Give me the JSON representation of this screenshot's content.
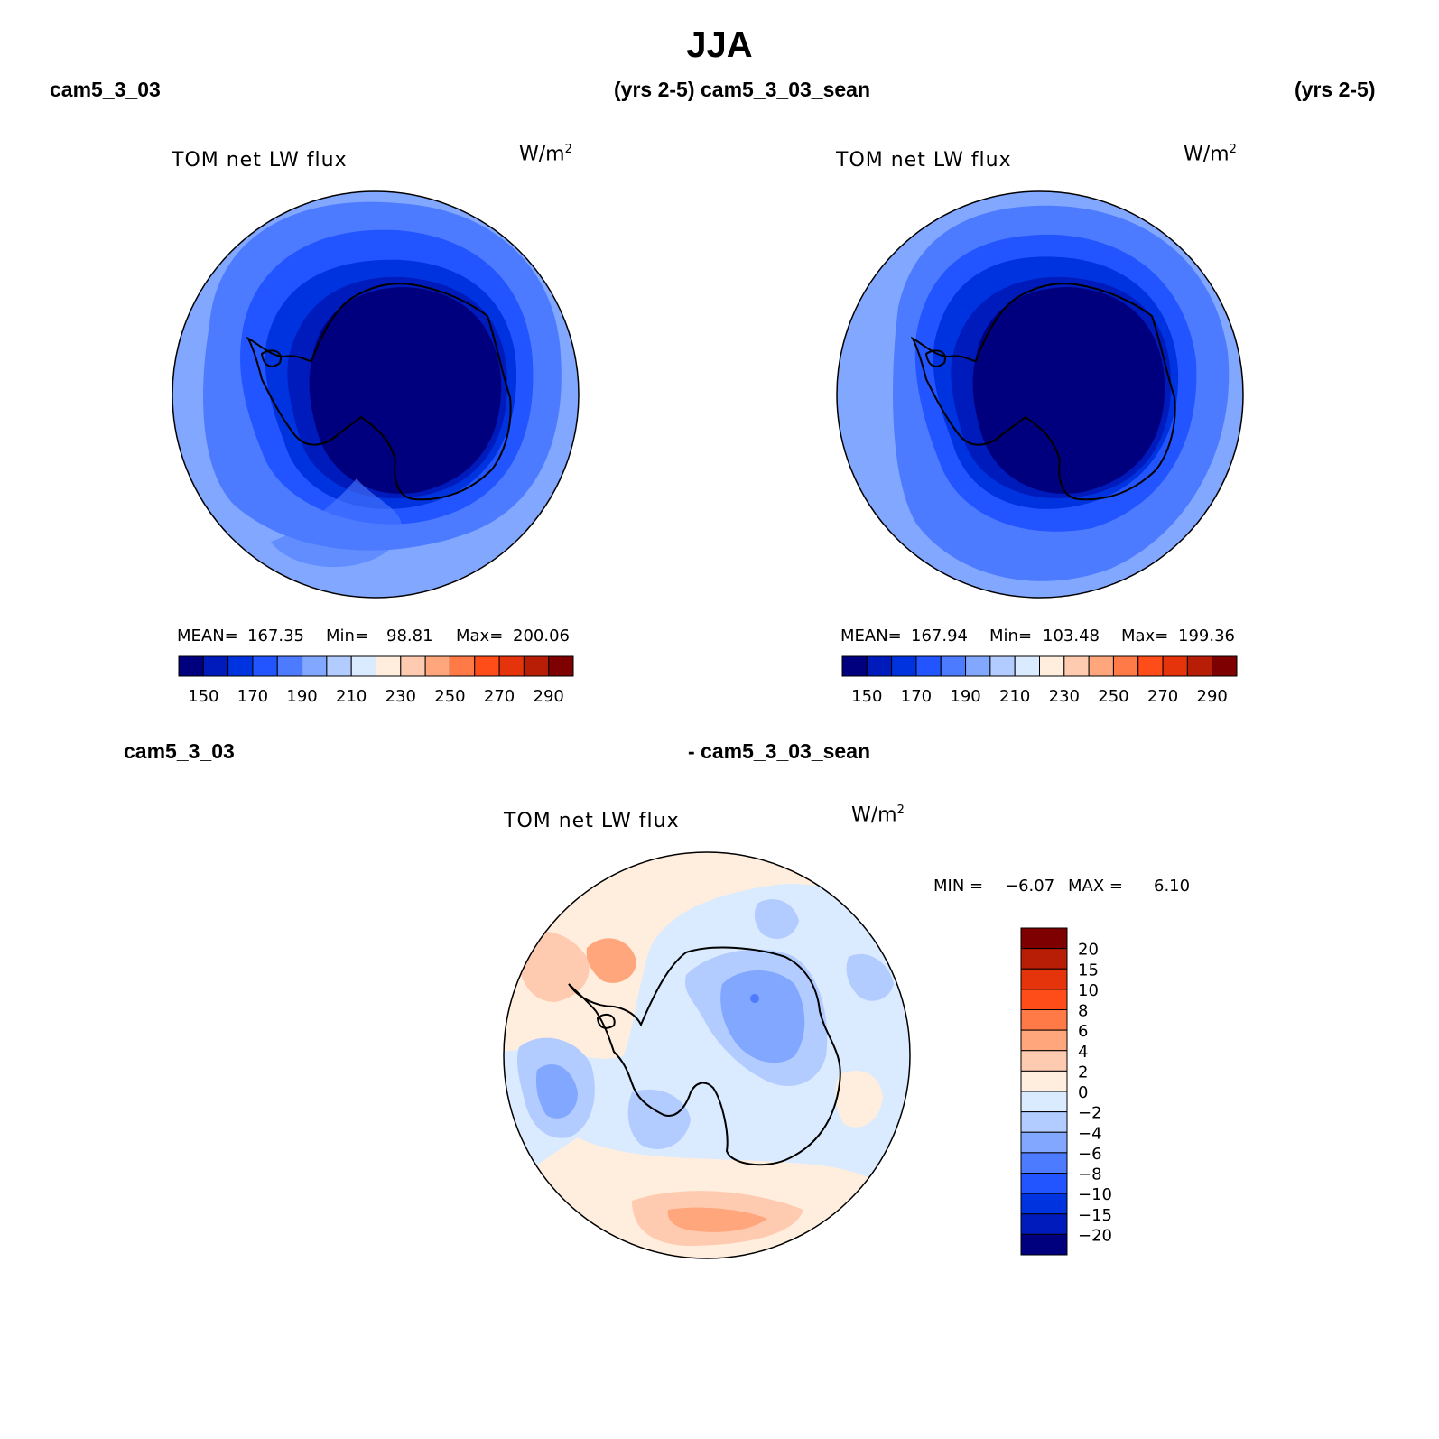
{
  "page_title": "JJA",
  "panels": [
    {
      "case_left": "cam5_3_03",
      "case_right": "(yrs 2-5)",
      "variable": "TOM net LW flux",
      "units_base": "W/m",
      "units_exp": "2",
      "mean_label": "MEAN=",
      "mean_value": "167.35",
      "min_label": "Min=",
      "min_value": "98.81",
      "max_label": "Max=",
      "max_value": "200.06"
    },
    {
      "case_left": "cam5_3_03_sean",
      "case_right": "(yrs 2-5)",
      "variable": "TOM net LW flux",
      "units_base": "W/m",
      "units_exp": "2",
      "mean_label": "MEAN=",
      "mean_value": "167.94",
      "min_label": "Min=",
      "min_value": "103.48",
      "max_label": "Max=",
      "max_value": "199.36"
    }
  ],
  "diff_panel": {
    "case_left": "cam5_3_03",
    "case_right": "- cam5_3_03_sean",
    "variable": "TOM net LW flux",
    "units_base": "W/m",
    "units_exp": "2",
    "min_label": "MIN =",
    "min_value": "−6.07",
    "max_label": "MAX =",
    "max_value": "6.10"
  },
  "colorbar_abs": {
    "colors": [
      "#00007f",
      "#001bbc",
      "#0033e0",
      "#2255ff",
      "#4d7bff",
      "#82a7ff",
      "#b3ccff",
      "#daeaff",
      "#ffeedd",
      "#ffcbb0",
      "#ffa67d",
      "#ff7a46",
      "#ff4d1a",
      "#e5330b",
      "#b81d05",
      "#7f0000"
    ],
    "labels": [
      "150",
      "170",
      "190",
      "210",
      "230",
      "250",
      "270",
      "290"
    ]
  },
  "colorbar_diff": {
    "colors_top_to_bottom": [
      "#7f0000",
      "#b81d05",
      "#e5330b",
      "#ff4d1a",
      "#ff7a46",
      "#ffa67d",
      "#ffcbb0",
      "#ffeedd",
      "#daeaff",
      "#b3ccff",
      "#82a7ff",
      "#4d7bff",
      "#2255ff",
      "#0033e0",
      "#001bbc",
      "#00007f"
    ],
    "labels": [
      "20",
      "15",
      "10",
      "8",
      "6",
      "4",
      "2",
      "0",
      "−2",
      "−4",
      "−6",
      "−8",
      "−10",
      "−15",
      "−20"
    ]
  }
}
